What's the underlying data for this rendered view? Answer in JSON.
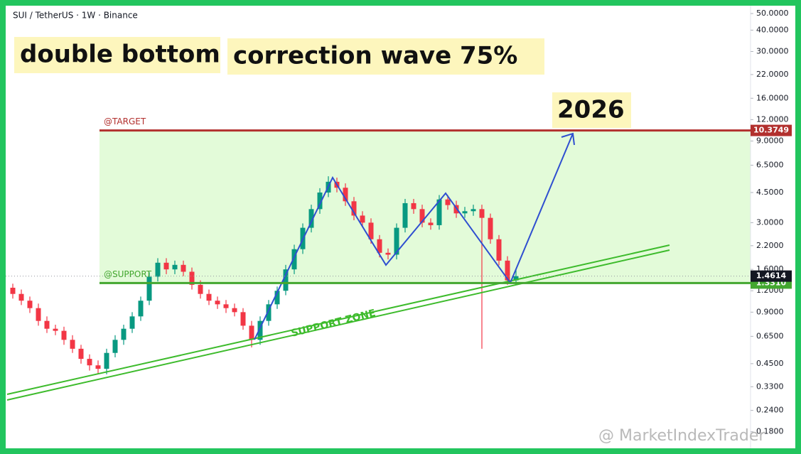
{
  "chart_data": {
    "type": "candlestick",
    "title": "SUI / TetherUS · 1W · Binance",
    "log_scale": true,
    "up_color": "#089981",
    "down_color": "#f23645",
    "ylim": [
      0.14,
      60
    ],
    "yticks": [
      {
        "value": 50,
        "label": "50.0000"
      },
      {
        "value": 40,
        "label": "40.0000"
      },
      {
        "value": 30,
        "label": "30.0000"
      },
      {
        "value": 22,
        "label": "22.0000"
      },
      {
        "value": 16,
        "label": "16.0000"
      },
      {
        "value": 12,
        "label": "12.0000"
      },
      {
        "value": 9,
        "label": "9.0000"
      },
      {
        "value": 6.5,
        "label": "6.5000"
      },
      {
        "value": 4.5,
        "label": "4.5000"
      },
      {
        "value": 3,
        "label": "3.0000"
      },
      {
        "value": 2.2,
        "label": "2.2000"
      },
      {
        "value": 1.6,
        "label": "1.6000"
      },
      {
        "value": 1.2,
        "label": "1.2000"
      },
      {
        "value": 0.9,
        "label": "0.9000"
      },
      {
        "value": 0.65,
        "label": "0.6500"
      },
      {
        "value": 0.45,
        "label": "0.4500"
      },
      {
        "value": 0.33,
        "label": "0.3300"
      },
      {
        "value": 0.24,
        "label": "0.2400"
      },
      {
        "value": 0.18,
        "label": "0.1800"
      }
    ],
    "candles": {
      "open": [
        1.25,
        1.15,
        1.05,
        0.95,
        0.8,
        0.72,
        0.7,
        0.62,
        0.55,
        0.48,
        0.44,
        0.42,
        0.52,
        0.62,
        0.72,
        0.85,
        1.05,
        1.45,
        1.75,
        1.6,
        1.7,
        1.55,
        1.3,
        1.15,
        1.05,
        1.0,
        0.95,
        0.9,
        0.75,
        0.62,
        0.8,
        1.0,
        1.2,
        1.6,
        2.1,
        2.8,
        3.6,
        4.5,
        5.2,
        4.8,
        4.0,
        3.3,
        3.0,
        2.4,
        2.0,
        1.95,
        2.8,
        3.9,
        3.6,
        3.0,
        2.9,
        4.1,
        3.8,
        3.4,
        3.5,
        3.6,
        3.2,
        2.4,
        1.8,
        1.38
      ],
      "high": [
        1.32,
        1.22,
        1.11,
        1.01,
        0.85,
        0.76,
        0.74,
        0.66,
        0.58,
        0.51,
        0.47,
        0.55,
        0.66,
        0.76,
        0.9,
        1.11,
        1.54,
        1.86,
        1.86,
        1.8,
        1.8,
        1.64,
        1.38,
        1.22,
        1.11,
        1.06,
        1.01,
        0.95,
        0.8,
        0.85,
        1.06,
        1.27,
        1.7,
        2.23,
        2.97,
        3.82,
        4.77,
        5.6,
        5.5,
        5.09,
        4.24,
        3.5,
        3.18,
        2.54,
        2.12,
        2.97,
        4.13,
        4.13,
        3.82,
        3.18,
        4.35,
        4.35,
        4.03,
        3.71,
        3.82,
        3.82,
        3.39,
        2.54,
        1.91,
        1.6
      ],
      "low": [
        1.08,
        0.99,
        0.89,
        0.75,
        0.68,
        0.66,
        0.58,
        0.52,
        0.45,
        0.41,
        0.39,
        0.39,
        0.49,
        0.58,
        0.68,
        0.8,
        0.99,
        1.36,
        1.5,
        1.5,
        1.46,
        1.22,
        1.08,
        0.99,
        0.94,
        0.89,
        0.85,
        0.71,
        0.56,
        0.58,
        0.75,
        0.94,
        1.13,
        1.5,
        1.97,
        2.63,
        3.38,
        4.23,
        4.51,
        3.76,
        3.1,
        2.82,
        2.26,
        1.88,
        1.83,
        1.83,
        2.63,
        3.38,
        2.82,
        2.73,
        2.73,
        3.57,
        3.2,
        3.2,
        3.29,
        0.55,
        2.26,
        1.69,
        1.3,
        1.3
      ],
      "close": [
        1.15,
        1.05,
        0.95,
        0.8,
        0.72,
        0.7,
        0.62,
        0.55,
        0.48,
        0.44,
        0.42,
        0.52,
        0.62,
        0.72,
        0.85,
        1.05,
        1.45,
        1.75,
        1.6,
        1.7,
        1.55,
        1.3,
        1.15,
        1.05,
        1.0,
        0.95,
        0.9,
        0.75,
        0.62,
        0.8,
        1.0,
        1.2,
        1.6,
        2.1,
        2.8,
        3.6,
        4.5,
        5.2,
        4.8,
        4.0,
        3.3,
        3.0,
        2.4,
        2.0,
        1.95,
        2.8,
        3.9,
        3.6,
        3.0,
        2.9,
        4.1,
        3.8,
        3.4,
        3.5,
        3.6,
        3.2,
        2.4,
        1.8,
        1.38,
        1.46
      ]
    },
    "levels": [
      {
        "name": "@TARGET",
        "value": 10.3749,
        "color": "#b2302e"
      },
      {
        "name": "@SUPPORT",
        "value": 1.331,
        "label": "1.3310",
        "color": "#43a72f"
      }
    ],
    "last_price": {
      "value": 1.4614,
      "color": "#131722"
    },
    "zone_color": "#e3fbd9",
    "annotations": [
      "double bottom",
      "correction wave 75%",
      "2026",
      "SUPPORT ZONE"
    ],
    "watermark": "@ MarketIndexTrader"
  }
}
